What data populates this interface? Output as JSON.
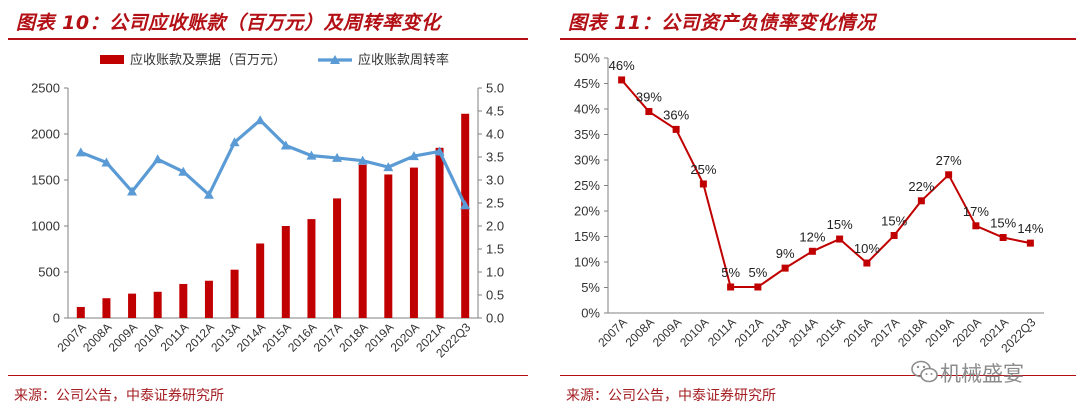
{
  "charts": {
    "left_title": "图表 10：公司应收账款（百万元）及周转率变化",
    "left_source": "来源：公司公告，中泰证券研究所",
    "right_title": "图表 11：公司资产负债率变化情况",
    "right_source": "来源：公司公告，中泰证券研究所"
  },
  "watermark": {
    "text": "机械盛宴"
  },
  "colors": {
    "accent": "#b31016",
    "bar": "#c00000",
    "line_blue": "#5b9bd5",
    "line_red": "#c00000"
  },
  "chart_data": [
    {
      "type": "bar",
      "title": "图表 10：公司应收账款（百万元）及周转率变化",
      "categories": [
        "2007A",
        "2008A",
        "2009A",
        "2010A",
        "2011A",
        "2012A",
        "2013A",
        "2014A",
        "2015A",
        "2016A",
        "2017A",
        "2018A",
        "2019A",
        "2020A",
        "2021A",
        "2022Q3"
      ],
      "series": [
        {
          "name": "应收账款及票据（百万元）",
          "type": "bar",
          "axis": "left",
          "values": [
            120,
            215,
            265,
            285,
            370,
            405,
            525,
            810,
            1000,
            1075,
            1300,
            1665,
            1560,
            1635,
            1850,
            2220
          ]
        },
        {
          "name": "应收账款周转率",
          "type": "line",
          "axis": "right",
          "values": [
            3.6,
            3.38,
            2.75,
            3.45,
            3.18,
            2.68,
            3.82,
            4.3,
            3.75,
            3.53,
            3.48,
            3.42,
            3.28,
            3.52,
            3.62,
            2.45
          ]
        }
      ],
      "y_left": {
        "min": 0,
        "max": 2500,
        "ticks": [
          "0",
          "500",
          "1000",
          "1500",
          "2000",
          "2500"
        ]
      },
      "y_right": {
        "min": 0,
        "max": 5,
        "ticks": [
          "0.0",
          "0.5",
          "1.0",
          "1.5",
          "2.0",
          "2.5",
          "3.0",
          "3.5",
          "4.0",
          "4.5",
          "5.0"
        ]
      },
      "legend_position": "top"
    },
    {
      "type": "line",
      "title": "图表 11：公司资产负债率变化情况",
      "categories": [
        "2007A",
        "2008A",
        "2009A",
        "2010A",
        "2011A",
        "2012A",
        "2013A",
        "2014A",
        "2015A",
        "2016A",
        "2017A",
        "2018A",
        "2019A",
        "2020A",
        "2021A",
        "2022Q3"
      ],
      "series": [
        {
          "name": "资产负债率",
          "values": [
            45.7,
            39.5,
            36.0,
            25.3,
            5.1,
            5.1,
            8.8,
            12.1,
            14.5,
            9.8,
            15.2,
            22.0,
            27.1,
            17.1,
            14.8,
            13.7
          ]
        }
      ],
      "data_labels": [
        "46%",
        "39%",
        "36%",
        "25%",
        "5%",
        "5%",
        "9%",
        "12%",
        "15%",
        "10%",
        "15%",
        "22%",
        "27%",
        "17%",
        "15%",
        "14%"
      ],
      "y": {
        "min": 0,
        "max": 50,
        "ticks": [
          "0%",
          "5%",
          "10%",
          "15%",
          "20%",
          "25%",
          "30%",
          "35%",
          "40%",
          "45%",
          "50%"
        ]
      }
    }
  ]
}
